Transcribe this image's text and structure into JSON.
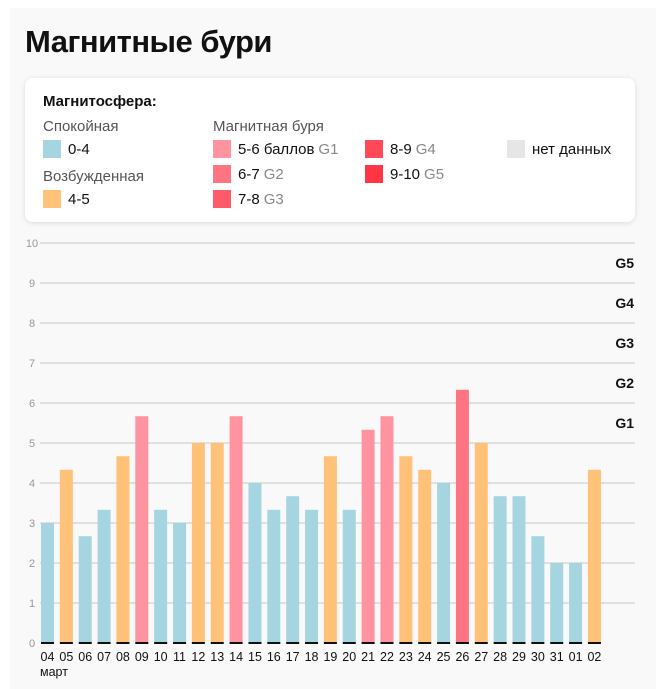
{
  "title": "Магнитные бури",
  "legend": {
    "title": "Магнитосфера:",
    "calm_label": "Спокойная",
    "excited_label": "Возбужденная",
    "storm_label": "Магнитная буря",
    "items": [
      {
        "range": "0-4",
        "g": "",
        "color": "#a6d5e2"
      },
      {
        "range": "4-5",
        "g": "",
        "color": "#ffc278"
      },
      {
        "range": "5-6 баллов",
        "g": "G1",
        "color": "#ff939f"
      },
      {
        "range": "6-7",
        "g": "G2",
        "color": "#ff7482"
      },
      {
        "range": "7-8",
        "g": "G3",
        "color": "#ff5a6a"
      },
      {
        "range": "8-9",
        "g": "G4",
        "color": "#ff4858"
      },
      {
        "range": "9-10",
        "g": "G5",
        "color": "#ff3545"
      },
      {
        "range": "нет данных",
        "g": "",
        "color": "#e6e6e6"
      }
    ]
  },
  "chart_data": {
    "type": "bar",
    "categories": [
      "04",
      "05",
      "06",
      "07",
      "08",
      "09",
      "10",
      "11",
      "12",
      "13",
      "14",
      "15",
      "16",
      "17",
      "18",
      "19",
      "20",
      "21",
      "22",
      "23",
      "24",
      "25",
      "26",
      "27",
      "28",
      "29",
      "30",
      "31",
      "01",
      "02"
    ],
    "values": [
      3,
      4.33,
      2.67,
      3.33,
      4.67,
      5.67,
      3.33,
      3,
      5,
      5,
      5.67,
      4,
      3.33,
      3.67,
      3.33,
      4.67,
      3.33,
      5.33,
      5.67,
      4.67,
      4.33,
      4,
      6.33,
      5,
      3.67,
      3.67,
      2.67,
      2,
      2,
      4.33
    ],
    "x_sublabel": "март",
    "ylim": [
      0,
      10
    ],
    "yticks": [
      "0",
      "1",
      "2",
      "3",
      "4",
      "5",
      "6",
      "7",
      "8",
      "9",
      "10"
    ],
    "grid": true,
    "level_labels": [
      {
        "label": "G1",
        "y": 5.5
      },
      {
        "label": "G2",
        "y": 6.5
      },
      {
        "label": "G3",
        "y": 7.5
      },
      {
        "label": "G4",
        "y": 8.5
      },
      {
        "label": "G5",
        "y": 9.5
      }
    ]
  }
}
